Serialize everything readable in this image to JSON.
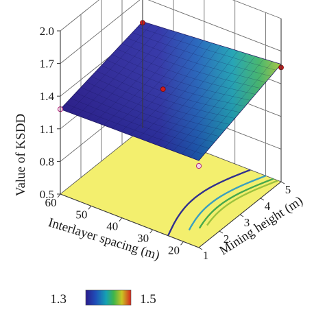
{
  "chart_data": {
    "type": "surface3d",
    "title": "",
    "zlabel": "Value of KSDD",
    "xlabel": "Interlayer spacing (m)",
    "ylabel": "Mining height (m)",
    "xlim": [
      15,
      60
    ],
    "ylim": [
      1,
      5
    ],
    "zlim": [
      0.5,
      2.0
    ],
    "x_ticks": [
      "60",
      "50",
      "40",
      "30",
      "20"
    ],
    "y_ticks": [
      "1",
      "2",
      "3",
      "4",
      "5"
    ],
    "z_ticks": [
      "2.0",
      "1.7",
      "1.4",
      "1.1",
      "0.8",
      "0.5"
    ],
    "grid": true,
    "surface_corners": [
      {
        "interlayer_spacing": 60,
        "mining_height": 1,
        "ksdd": 1.28
      },
      {
        "interlayer_spacing": 15,
        "mining_height": 1,
        "ksdd": 1.3
      },
      {
        "interlayer_spacing": 15,
        "mining_height": 5,
        "ksdd": 1.58
      },
      {
        "interlayer_spacing": 60,
        "mining_height": 5,
        "ksdd": 1.48
      }
    ],
    "design_points": [
      {
        "interlayer_spacing": 60,
        "mining_height": 1,
        "ksdd": 1.28,
        "position": "below-surface"
      },
      {
        "interlayer_spacing": 15,
        "mining_height": 1,
        "ksdd": 1.25,
        "position": "below-surface"
      },
      {
        "interlayer_spacing": 15,
        "mining_height": 5,
        "ksdd": 1.55,
        "position": "above-surface"
      },
      {
        "interlayer_spacing": 60,
        "mining_height": 5,
        "ksdd": 1.47,
        "position": "above-surface"
      },
      {
        "interlayer_spacing": 40,
        "mining_height": 3,
        "ksdd": 1.38,
        "position": "above-surface"
      }
    ],
    "colorbar": {
      "min_label": "1.3",
      "max_label": "1.5",
      "colors": [
        "#2a1a8c",
        "#1f4fb8",
        "#15a0b4",
        "#3fb54a",
        "#c9c423",
        "#d7261e"
      ]
    },
    "floor_color": "#f3ef6e",
    "contours": [
      {
        "level": 1.3,
        "color": "#30308f"
      },
      {
        "level": 1.35,
        "color": "#3a9fc0"
      },
      {
        "level": 1.4,
        "color": "#47a84d"
      },
      {
        "level": 1.45,
        "color": "#9cc23e"
      }
    ]
  }
}
